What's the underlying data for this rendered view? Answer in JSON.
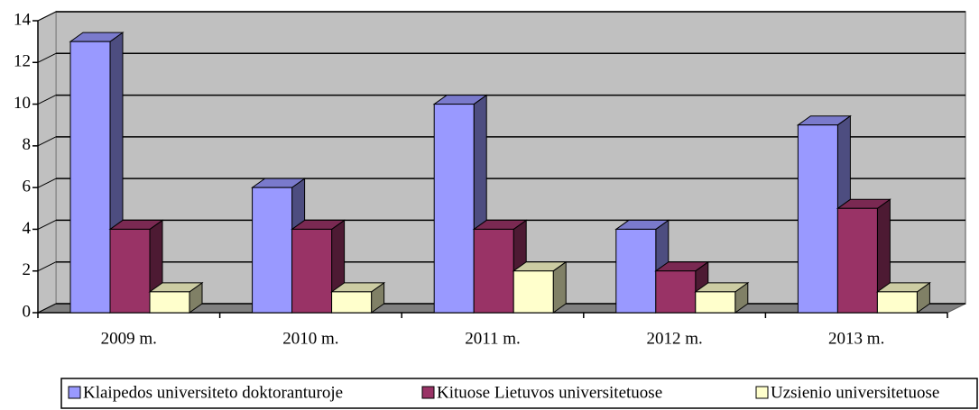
{
  "chart_data": {
    "type": "bar3d",
    "categories": [
      "2009 m.",
      "2010 m.",
      "2011 m.",
      "2012 m.",
      "2013 m."
    ],
    "series": [
      {
        "name": "Klaipedos universiteto doktoranturoje",
        "color": "#9999ff",
        "values": [
          13,
          6,
          10,
          4,
          9
        ]
      },
      {
        "name": "Kituose Lietuvos universitetuose",
        "color": "#993366",
        "values": [
          4,
          4,
          4,
          2,
          5
        ]
      },
      {
        "name": "Uzsienio universitetuose",
        "color": "#ffffcc",
        "values": [
          1,
          1,
          2,
          1,
          1
        ]
      }
    ],
    "ylim": [
      0,
      14
    ],
    "yticks": [
      0,
      2,
      4,
      6,
      8,
      10,
      12,
      14
    ],
    "grid": true,
    "legend": "bottom"
  }
}
